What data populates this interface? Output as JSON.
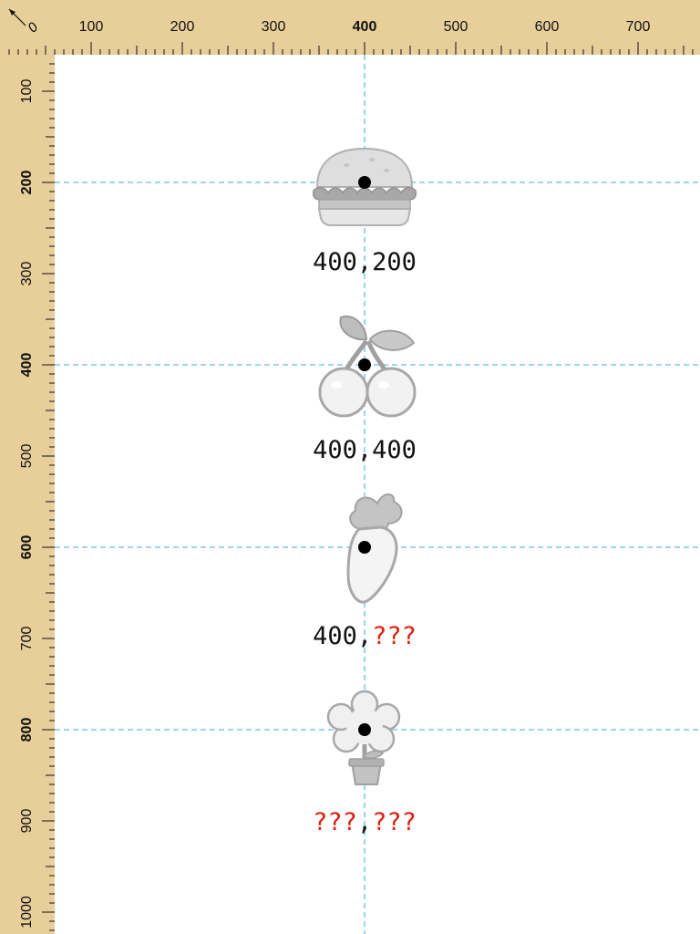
{
  "ruler": {
    "origin_label": "0",
    "x_labels": [
      "100",
      "200",
      "300",
      "400",
      "500",
      "600",
      "700"
    ],
    "y_labels": [
      "100",
      "200",
      "300",
      "400",
      "500",
      "600",
      "700",
      "800",
      "900",
      "1000"
    ],
    "bold_x": [
      "400"
    ],
    "bold_y": [
      "200",
      "400",
      "600",
      "800"
    ],
    "background": "#e8cf9a"
  },
  "guides": {
    "color": "#5bbfe8"
  },
  "items": [
    {
      "icon": "hamburger-icon",
      "x_text": "400",
      "y_text": "200",
      "x_known": true,
      "y_known": true
    },
    {
      "icon": "cherries-icon",
      "x_text": "400",
      "y_text": "400",
      "x_known": true,
      "y_known": true
    },
    {
      "icon": "carrot-icon",
      "x_text": "400",
      "y_text": "???",
      "x_known": true,
      "y_known": false
    },
    {
      "icon": "flower-pot-icon",
      "x_text": "???",
      "y_text": "???",
      "x_known": false,
      "y_known": false
    }
  ],
  "separator": ",",
  "unknown_color": "#e02010",
  "text_color": "#111111"
}
